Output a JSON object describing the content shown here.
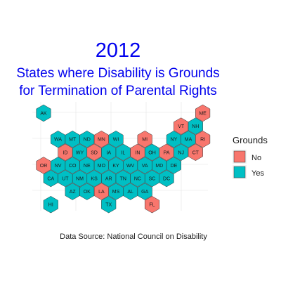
{
  "chart_data": {
    "type": "hexbin-map",
    "title": "2012",
    "subtitle": "States where Disability is Grounds\n for Termination of Parental Rights",
    "caption": "Data Source: National Council on Disability",
    "legend": {
      "title": "Grounds",
      "position": "right",
      "entries": [
        {
          "label": "No",
          "color": "#f8766d"
        },
        {
          "label": "Yes",
          "color": "#00bfc4"
        }
      ]
    },
    "grid": true,
    "background": "#ffffff",
    "states": [
      {
        "abbr": "AK",
        "row": 0,
        "col": 0,
        "value": "Yes"
      },
      {
        "abbr": "ME",
        "row": 0,
        "col": 11,
        "value": "No"
      },
      {
        "abbr": "VT",
        "row": 1,
        "col": 9,
        "value": "No"
      },
      {
        "abbr": "NH",
        "row": 1,
        "col": 10,
        "value": "Yes"
      },
      {
        "abbr": "WA",
        "row": 2,
        "col": 1,
        "value": "Yes"
      },
      {
        "abbr": "MT",
        "row": 2,
        "col": 2,
        "value": "Yes"
      },
      {
        "abbr": "ND",
        "row": 2,
        "col": 3,
        "value": "Yes"
      },
      {
        "abbr": "MN",
        "row": 2,
        "col": 4,
        "value": "No"
      },
      {
        "abbr": "WI",
        "row": 2,
        "col": 5,
        "value": "Yes"
      },
      {
        "abbr": "MI",
        "row": 2,
        "col": 7,
        "value": "No"
      },
      {
        "abbr": "NY",
        "row": 2,
        "col": 9,
        "value": "Yes"
      },
      {
        "abbr": "MA",
        "row": 2,
        "col": 10,
        "value": "Yes"
      },
      {
        "abbr": "RI",
        "row": 2,
        "col": 11,
        "value": "No"
      },
      {
        "abbr": "ID",
        "row": 3,
        "col": 1,
        "value": "No"
      },
      {
        "abbr": "WY",
        "row": 3,
        "col": 2,
        "value": "Yes"
      },
      {
        "abbr": "SD",
        "row": 3,
        "col": 3,
        "value": "No"
      },
      {
        "abbr": "IA",
        "row": 3,
        "col": 4,
        "value": "Yes"
      },
      {
        "abbr": "IL",
        "row": 3,
        "col": 5,
        "value": "Yes"
      },
      {
        "abbr": "IN",
        "row": 3,
        "col": 6,
        "value": "No"
      },
      {
        "abbr": "OH",
        "row": 3,
        "col": 7,
        "value": "Yes"
      },
      {
        "abbr": "PA",
        "row": 3,
        "col": 8,
        "value": "No"
      },
      {
        "abbr": "NJ",
        "row": 3,
        "col": 9,
        "value": "Yes"
      },
      {
        "abbr": "CT",
        "row": 3,
        "col": 10,
        "value": "No"
      },
      {
        "abbr": "OR",
        "row": 4,
        "col": 0,
        "value": "No"
      },
      {
        "abbr": "NV",
        "row": 4,
        "col": 1,
        "value": "Yes"
      },
      {
        "abbr": "CO",
        "row": 4,
        "col": 2,
        "value": "Yes"
      },
      {
        "abbr": "NE",
        "row": 4,
        "col": 3,
        "value": "Yes"
      },
      {
        "abbr": "MO",
        "row": 4,
        "col": 4,
        "value": "Yes"
      },
      {
        "abbr": "KY",
        "row": 4,
        "col": 5,
        "value": "Yes"
      },
      {
        "abbr": "WV",
        "row": 4,
        "col": 6,
        "value": "Yes"
      },
      {
        "abbr": "VA",
        "row": 4,
        "col": 7,
        "value": "Yes"
      },
      {
        "abbr": "MD",
        "row": 4,
        "col": 8,
        "value": "Yes"
      },
      {
        "abbr": "DE",
        "row": 4,
        "col": 9,
        "value": "Yes"
      },
      {
        "abbr": "CA",
        "row": 5,
        "col": 0,
        "value": "Yes"
      },
      {
        "abbr": "UT",
        "row": 5,
        "col": 1,
        "value": "Yes"
      },
      {
        "abbr": "NM",
        "row": 5,
        "col": 2,
        "value": "Yes"
      },
      {
        "abbr": "KS",
        "row": 5,
        "col": 3,
        "value": "Yes"
      },
      {
        "abbr": "AR",
        "row": 5,
        "col": 4,
        "value": "Yes"
      },
      {
        "abbr": "TN",
        "row": 5,
        "col": 5,
        "value": "Yes"
      },
      {
        "abbr": "NC",
        "row": 5,
        "col": 6,
        "value": "Yes"
      },
      {
        "abbr": "SC",
        "row": 5,
        "col": 7,
        "value": "Yes"
      },
      {
        "abbr": "DC",
        "row": 5,
        "col": 8,
        "value": "Yes"
      },
      {
        "abbr": "AZ",
        "row": 6,
        "col": 2,
        "value": "Yes"
      },
      {
        "abbr": "OK",
        "row": 6,
        "col": 3,
        "value": "Yes"
      },
      {
        "abbr": "LA",
        "row": 6,
        "col": 4,
        "value": "No"
      },
      {
        "abbr": "MS",
        "row": 6,
        "col": 5,
        "value": "Yes"
      },
      {
        "abbr": "AL",
        "row": 6,
        "col": 6,
        "value": "Yes"
      },
      {
        "abbr": "GA",
        "row": 6,
        "col": 7,
        "value": "Yes"
      },
      {
        "abbr": "HI",
        "row": 7,
        "col": 0,
        "value": "Yes"
      },
      {
        "abbr": "TX",
        "row": 7,
        "col": 4,
        "value": "Yes"
      },
      {
        "abbr": "FL",
        "row": 7,
        "col": 7,
        "value": "No"
      }
    ]
  }
}
